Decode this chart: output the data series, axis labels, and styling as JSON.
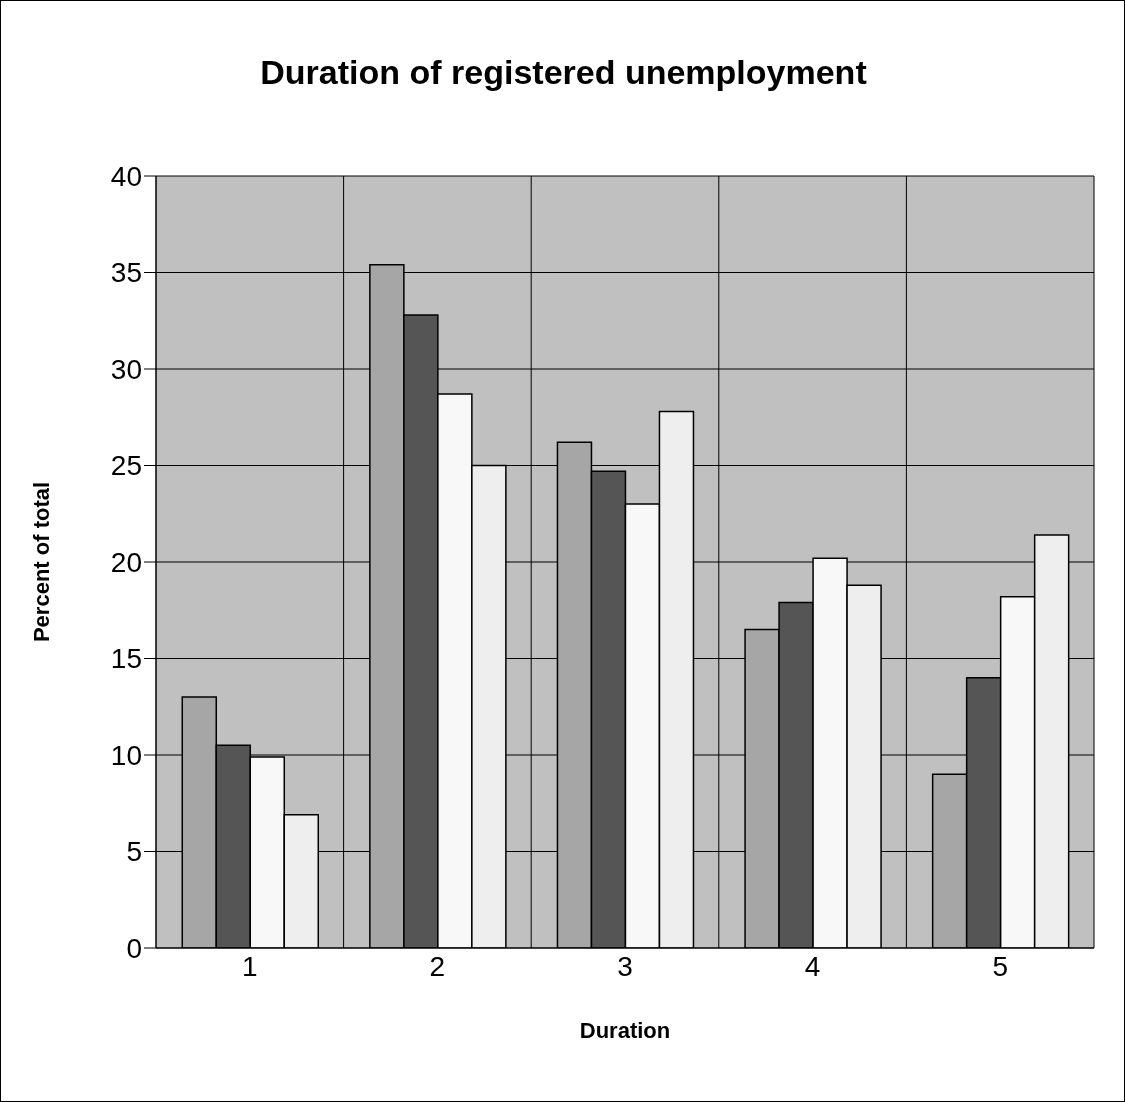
{
  "chart_data": {
    "type": "bar",
    "title": "Duration of registered unemployment",
    "xlabel": "Duration",
    "ylabel": "Percent of total",
    "categories": [
      "1",
      "2",
      "3",
      "4",
      "5"
    ],
    "series": [
      {
        "color": "#a6a6a6",
        "values": [
          13.0,
          35.4,
          26.2,
          16.5,
          9.0
        ]
      },
      {
        "color": "#555555",
        "values": [
          10.5,
          32.8,
          24.7,
          17.9,
          14.0
        ]
      },
      {
        "color": "#f8f8f8",
        "values": [
          9.9,
          28.7,
          23.0,
          20.2,
          18.2
        ]
      },
      {
        "color": "#eeeeee",
        "values": [
          6.9,
          25.0,
          27.8,
          18.8,
          21.4
        ]
      }
    ],
    "ylim": [
      0,
      40
    ],
    "yticks": [
      0,
      5,
      10,
      15,
      20,
      25,
      30,
      35,
      40
    ],
    "grid": true,
    "legend": false
  }
}
